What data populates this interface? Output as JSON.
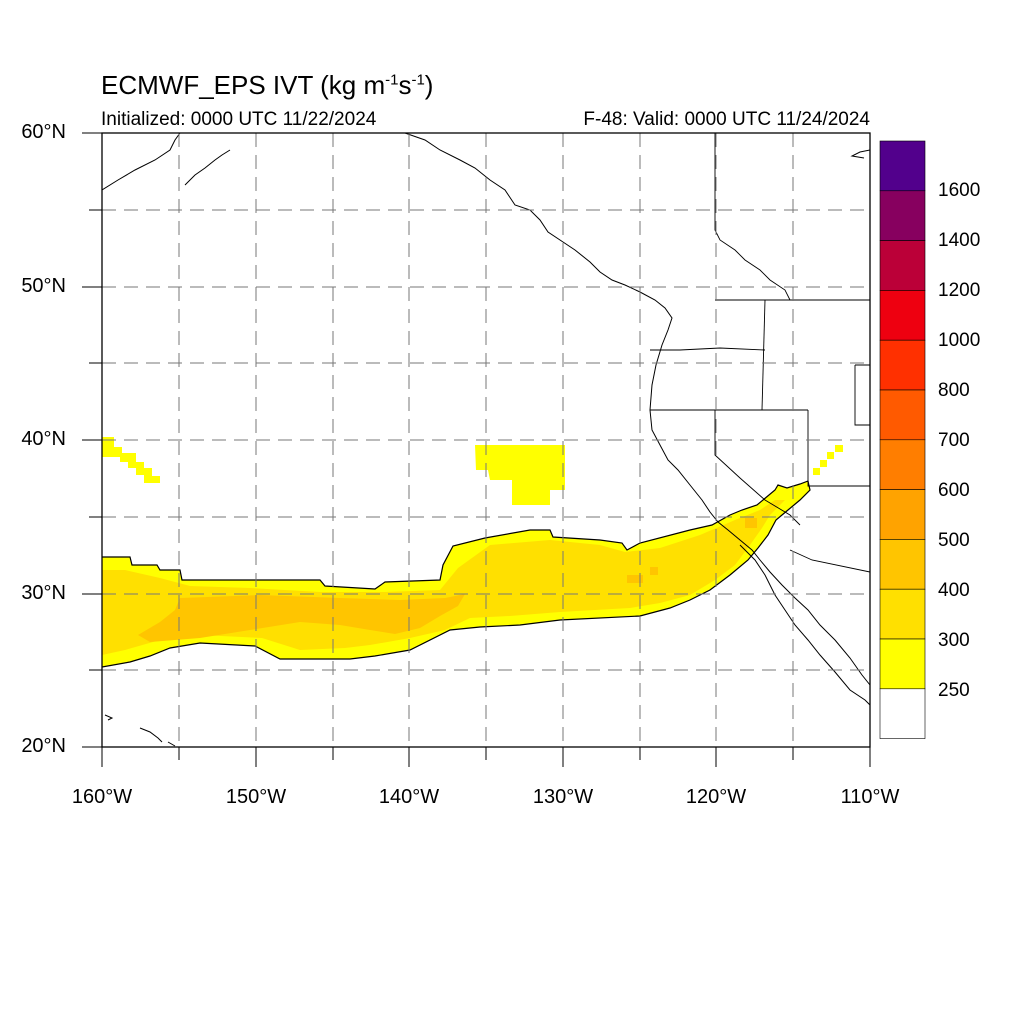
{
  "title": {
    "text": "ECMWF_EPS IVT (kg m",
    "exp1": "-1",
    "mid": "s",
    "exp2": "-1",
    "end": ")"
  },
  "subtitle_left": "Initialized: 0000 UTC 11/22/2024",
  "subtitle_right": "F-48: Valid: 0000 UTC 11/24/2024",
  "lat_labels": [
    "60°N",
    "50°N",
    "40°N",
    "30°N",
    "20°N"
  ],
  "lon_labels": [
    "160°W",
    "150°W",
    "140°W",
    "130°W",
    "120°W",
    "110°W"
  ],
  "colorbar": {
    "labels": [
      "1600",
      "1400",
      "1200",
      "1000",
      "800",
      "700",
      "600",
      "500",
      "400",
      "300",
      "250"
    ],
    "colors": [
      "#52008c",
      "#87005f",
      "#bb0038",
      "#ee0010",
      "#ff3000",
      "#ff5a00",
      "#ff7e00",
      "#ffa300",
      "#ffc500",
      "#ffe000",
      "#ffff00",
      "#ffffff"
    ]
  },
  "map": {
    "extent": {
      "lon_min": -160,
      "lon_max": -110,
      "lat_min": 20,
      "lat_max": 60
    },
    "field_colors": {
      "c250": "#ffff00",
      "c300": "#ffe000",
      "c400": "#ffc500"
    }
  }
}
